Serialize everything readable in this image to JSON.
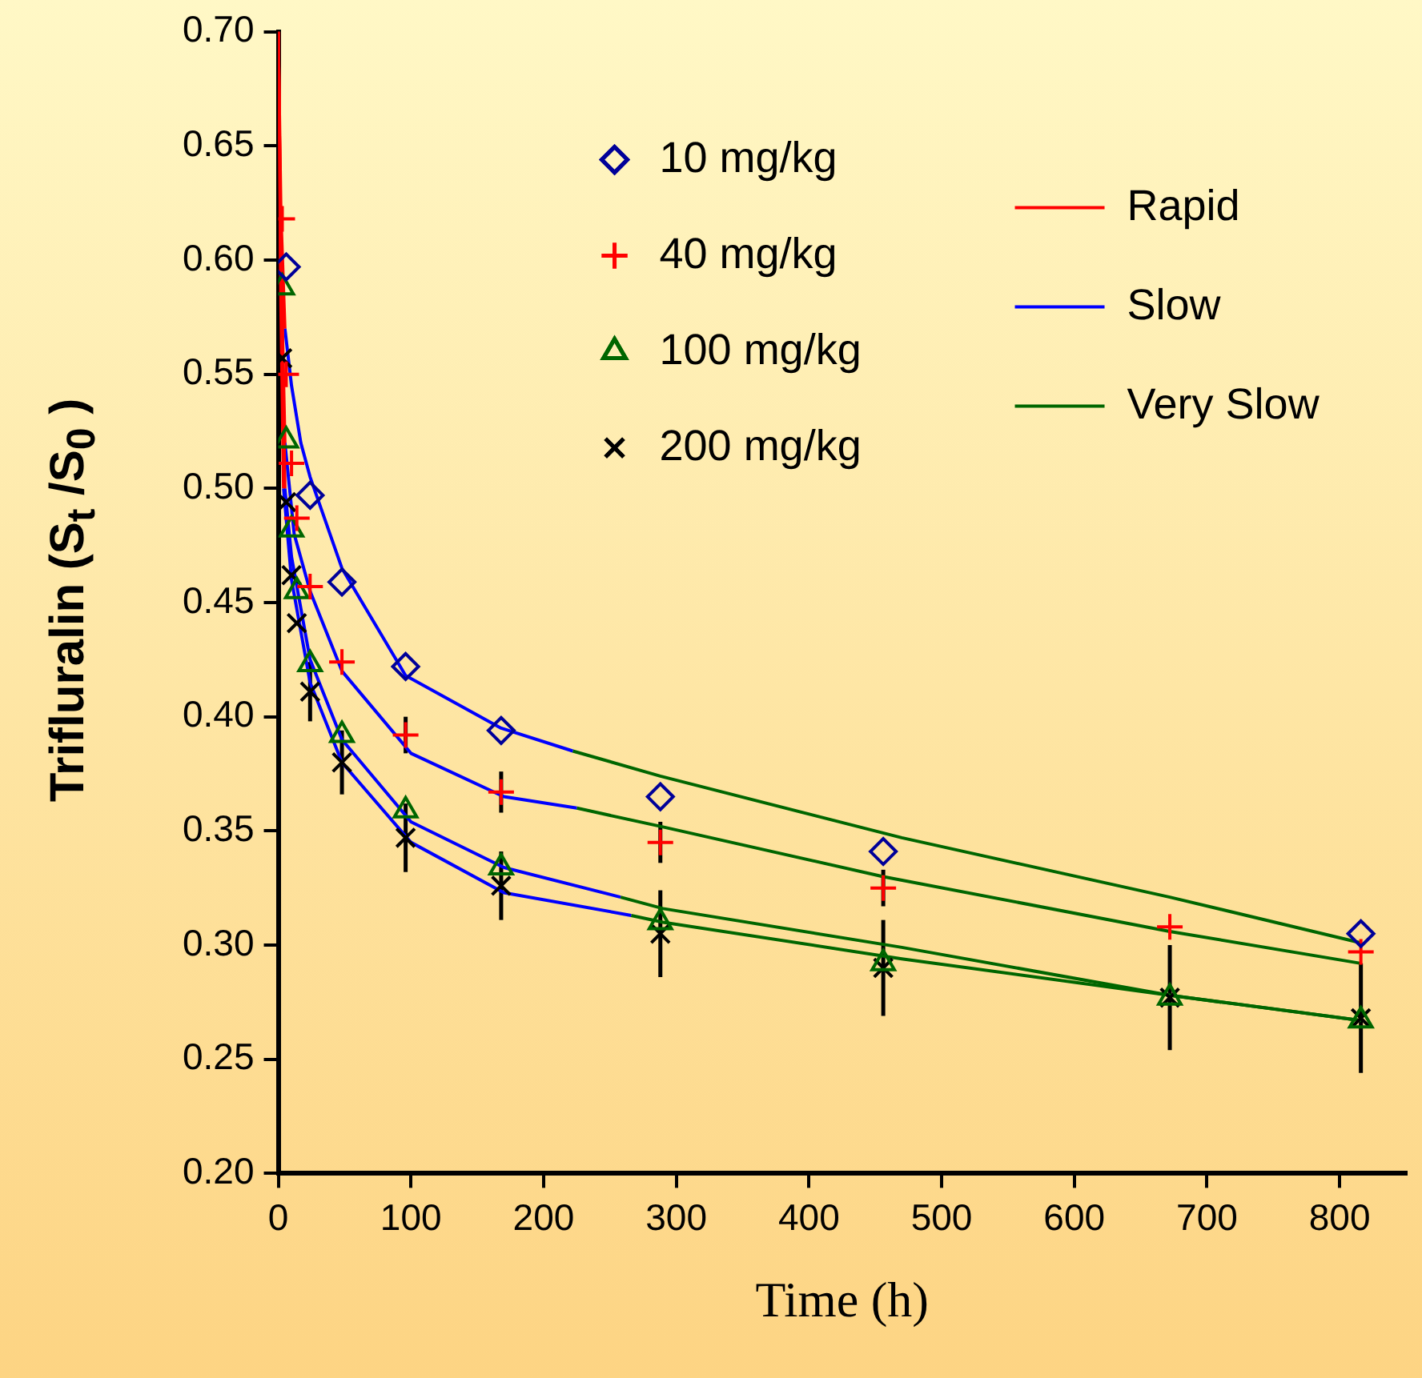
{
  "chart_data": {
    "type": "scatter",
    "xlabel": "Time (h)",
    "ylabel": "Trifluralin (S$_{t}$ /S$_{0}$ )",
    "xlim": [
      0,
      850
    ],
    "xticks": [
      0,
      100,
      200,
      300,
      400,
      500,
      600,
      700,
      800
    ],
    "ylim": [
      0.2,
      0.7
    ],
    "yticks": [
      {
        "value": 0.2,
        "label": "0.20"
      },
      0.25,
      {
        "value": 0.3,
        "label": "0.30"
      },
      0.35,
      {
        "value": 0.4,
        "label": "0.40"
      },
      0.45,
      {
        "value": 0.5,
        "label": "0.50"
      },
      0.55,
      {
        "value": 0.6,
        "label": "0.60"
      },
      0.65,
      {
        "value": 0.7,
        "label": "0.70"
      }
    ],
    "grid": false,
    "legend": "top",
    "series": [
      {
        "name": "10 mg/kg",
        "marker": "diamond",
        "color": "#000099",
        "x": [
          6,
          24,
          48,
          96,
          168,
          288,
          456,
          816
        ],
        "values": [
          0.597,
          0.497,
          0.459,
          0.422,
          0.394,
          0.365,
          0.341,
          0.305
        ]
      },
      {
        "name": "40 mg/kg",
        "marker": "cross",
        "color": "#ff0000",
        "x": [
          3,
          6,
          10,
          14,
          24,
          48,
          96,
          168,
          288,
          456,
          672,
          816
        ],
        "values": [
          0.618,
          0.55,
          0.511,
          0.487,
          0.457,
          0.424,
          0.392,
          0.367,
          0.345,
          0.325,
          0.308,
          0.297
        ],
        "errors": [
          null,
          null,
          null,
          null,
          null,
          null,
          0.008,
          0.009,
          0.009,
          0.008,
          null,
          null
        ]
      },
      {
        "name": "100 mg/kg",
        "marker": "triangle",
        "color": "#006600",
        "x": [
          3,
          6,
          10,
          14,
          24,
          48,
          96,
          168,
          288,
          456,
          672,
          816
        ],
        "values": [
          0.588,
          0.521,
          0.482,
          0.455,
          0.423,
          0.392,
          0.359,
          0.334,
          0.31,
          0.292,
          0.277,
          0.267
        ]
      },
      {
        "name": "200 mg/kg",
        "marker": "x",
        "color": "#000000",
        "x": [
          3,
          6,
          10,
          14,
          24,
          48,
          96,
          168,
          288,
          456,
          672,
          816
        ],
        "values": [
          0.557,
          0.494,
          0.462,
          0.441,
          0.411,
          0.38,
          0.347,
          0.326,
          0.305,
          0.29,
          0.277,
          0.268
        ],
        "errors": [
          null,
          null,
          null,
          null,
          0.013,
          0.014,
          0.015,
          0.015,
          0.019,
          0.021,
          0.023,
          0.024
        ]
      },
      {
        "name": "Rapid",
        "type": "line",
        "color": "#ff0000",
        "x": [
          0,
          2,
          5
        ],
        "values": [
          0.7,
          0.62,
          0.57
        ]
      },
      {
        "type": "line",
        "color": "#ff0000",
        "x": [
          0,
          2,
          5
        ],
        "values": [
          0.7,
          0.6,
          0.52
        ]
      },
      {
        "type": "line",
        "color": "#ff0000",
        "x": [
          0,
          2,
          5
        ],
        "values": [
          0.7,
          0.6,
          0.5
        ]
      },
      {
        "type": "line",
        "color": "#ff0000",
        "x": [
          0,
          2,
          4
        ],
        "values": [
          0.7,
          0.58,
          0.5
        ]
      },
      {
        "name": "Slow",
        "type": "line",
        "color": "#0000ff",
        "x": [
          5,
          10,
          17,
          24,
          48,
          96,
          168,
          222
        ],
        "values": [
          0.57,
          0.545,
          0.52,
          0.505,
          0.465,
          0.418,
          0.395,
          0.385
        ]
      },
      {
        "type": "line",
        "color": "#0000ff",
        "x": [
          5,
          12,
          24,
          48,
          100,
          170,
          225
        ],
        "values": [
          0.52,
          0.48,
          0.455,
          0.42,
          0.384,
          0.365,
          0.36
        ]
      },
      {
        "type": "line",
        "color": "#0000ff",
        "x": [
          5,
          10,
          24,
          48,
          100,
          170,
          258
        ],
        "values": [
          0.5,
          0.47,
          0.425,
          0.39,
          0.354,
          0.334,
          0.321
        ]
      },
      {
        "type": "line",
        "color": "#0000ff",
        "x": [
          4,
          10,
          24,
          48,
          100,
          170,
          266
        ],
        "values": [
          0.5,
          0.46,
          0.415,
          0.38,
          0.345,
          0.323,
          0.313
        ]
      },
      {
        "name": "Very Slow",
        "type": "line",
        "color": "#006600",
        "x": [
          222,
          288,
          470,
          672,
          816
        ],
        "values": [
          0.385,
          0.374,
          0.347,
          0.321,
          0.301
        ]
      },
      {
        "type": "line",
        "color": "#006600",
        "x": [
          225,
          288,
          456,
          672,
          816
        ],
        "values": [
          0.36,
          0.352,
          0.33,
          0.306,
          0.292
        ]
      },
      {
        "type": "line",
        "color": "#006600",
        "x": [
          258,
          290,
          470,
          672,
          816
        ],
        "values": [
          0.321,
          0.316,
          0.299,
          0.278,
          0.267
        ]
      },
      {
        "type": "line",
        "color": "#006600",
        "x": [
          266,
          290,
          470,
          672,
          816
        ],
        "values": [
          0.313,
          0.31,
          0.294,
          0.278,
          0.267
        ]
      }
    ]
  }
}
